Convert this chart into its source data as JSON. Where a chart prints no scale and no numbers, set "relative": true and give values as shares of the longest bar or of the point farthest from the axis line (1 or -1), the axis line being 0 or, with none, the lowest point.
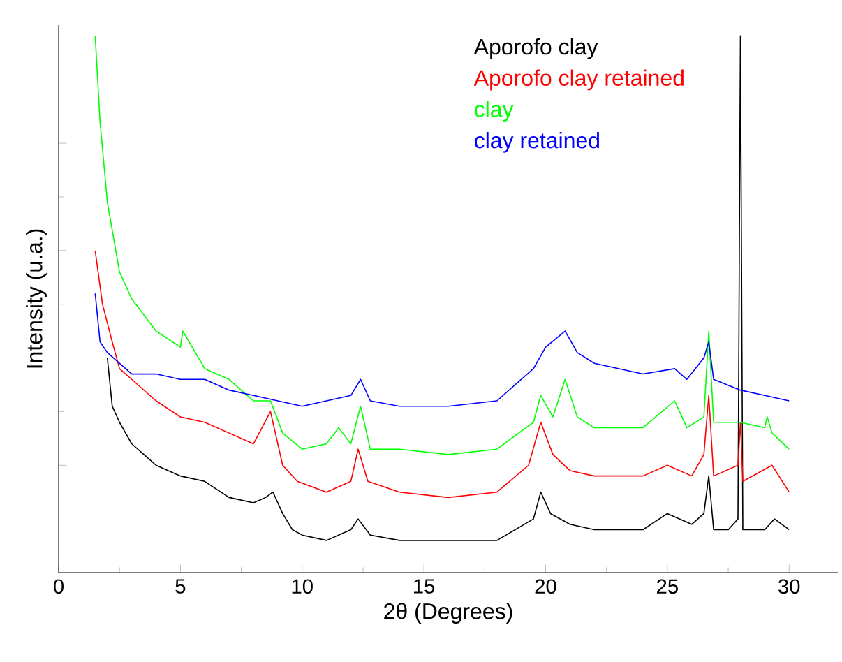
{
  "chart_data": {
    "type": "line",
    "relative": true,
    "xlabel": "2θ (Degrees)",
    "ylabel": "Intensity (u.a.)",
    "xlim": [
      0,
      32
    ],
    "xticks": [
      0,
      5,
      10,
      15,
      20,
      25,
      30
    ],
    "legend": "top",
    "marker": "none",
    "line_style": "solid",
    "series": [
      {
        "name": "Aporofo clay",
        "color": "#000000",
        "x": [
          2.0,
          2.2,
          2.5,
          3,
          3.5,
          4,
          5,
          6,
          7,
          8,
          8.5,
          8.8,
          9.2,
          9.6,
          10,
          11,
          12,
          12.3,
          12.8,
          14,
          16,
          18,
          19.5,
          19.8,
          20.2,
          21,
          22,
          24,
          25,
          26,
          26.5,
          26.7,
          26.9,
          27.5,
          27.9,
          28.0,
          28.1,
          29,
          29.4,
          30
        ],
        "values": [
          0.4,
          0.31,
          0.28,
          0.24,
          0.22,
          0.2,
          0.18,
          0.17,
          0.14,
          0.13,
          0.14,
          0.15,
          0.11,
          0.08,
          0.07,
          0.06,
          0.08,
          0.1,
          0.07,
          0.06,
          0.06,
          0.06,
          0.1,
          0.15,
          0.11,
          0.09,
          0.08,
          0.08,
          0.11,
          0.09,
          0.11,
          0.18,
          0.08,
          0.08,
          0.1,
          1.0,
          0.08,
          0.08,
          0.1,
          0.08
        ]
      },
      {
        "name": "Aporofo clay retained",
        "color": "#ff0000",
        "x": [
          1.5,
          1.8,
          2.2,
          2.5,
          3,
          4,
          5,
          6,
          7,
          8,
          8.7,
          9.2,
          9.8,
          11,
          12,
          12.3,
          12.7,
          14,
          16,
          18,
          19.3,
          19.8,
          20.3,
          21,
          22,
          24,
          25,
          26,
          26.5,
          26.7,
          26.9,
          27.9,
          28,
          28.1,
          29.3,
          30
        ],
        "values": [
          0.6,
          0.5,
          0.43,
          0.38,
          0.36,
          0.32,
          0.29,
          0.28,
          0.26,
          0.24,
          0.3,
          0.2,
          0.17,
          0.15,
          0.17,
          0.23,
          0.17,
          0.15,
          0.14,
          0.15,
          0.2,
          0.28,
          0.22,
          0.19,
          0.18,
          0.18,
          0.2,
          0.18,
          0.22,
          0.33,
          0.18,
          0.2,
          0.28,
          0.17,
          0.2,
          0.15
        ]
      },
      {
        "name": "clay",
        "color": "#00ff00",
        "x": [
          1.5,
          1.7,
          2,
          2.5,
          3,
          4,
          5,
          5.1,
          6,
          7,
          8,
          8.7,
          9.2,
          10,
          11,
          11.5,
          12,
          12.4,
          12.8,
          14,
          16,
          18,
          19.5,
          19.8,
          20.3,
          20.8,
          21.3,
          22,
          24,
          25.3,
          25.8,
          26.5,
          26.7,
          26.9,
          28,
          29,
          29.1,
          29.3,
          30
        ],
        "values": [
          1.0,
          0.84,
          0.69,
          0.56,
          0.51,
          0.45,
          0.42,
          0.45,
          0.38,
          0.36,
          0.32,
          0.32,
          0.26,
          0.23,
          0.24,
          0.27,
          0.24,
          0.31,
          0.23,
          0.23,
          0.22,
          0.23,
          0.28,
          0.33,
          0.29,
          0.36,
          0.29,
          0.27,
          0.27,
          0.32,
          0.27,
          0.29,
          0.45,
          0.28,
          0.28,
          0.27,
          0.29,
          0.26,
          0.23
        ]
      },
      {
        "name": "clay retained",
        "color": "#0000ff",
        "x": [
          1.5,
          1.7,
          2,
          2.5,
          3,
          4,
          5,
          6,
          7,
          8,
          9,
          10,
          11,
          12,
          12.4,
          12.8,
          14,
          16,
          18,
          19.5,
          20,
          20.8,
          21.3,
          22,
          24,
          25.3,
          25.8,
          26.5,
          26.7,
          26.9,
          28,
          29,
          30
        ],
        "values": [
          0.52,
          0.43,
          0.41,
          0.39,
          0.37,
          0.37,
          0.36,
          0.36,
          0.34,
          0.33,
          0.32,
          0.31,
          0.32,
          0.33,
          0.36,
          0.32,
          0.31,
          0.31,
          0.32,
          0.38,
          0.42,
          0.45,
          0.41,
          0.39,
          0.37,
          0.38,
          0.36,
          0.4,
          0.43,
          0.36,
          0.34,
          0.33,
          0.32
        ]
      }
    ]
  }
}
